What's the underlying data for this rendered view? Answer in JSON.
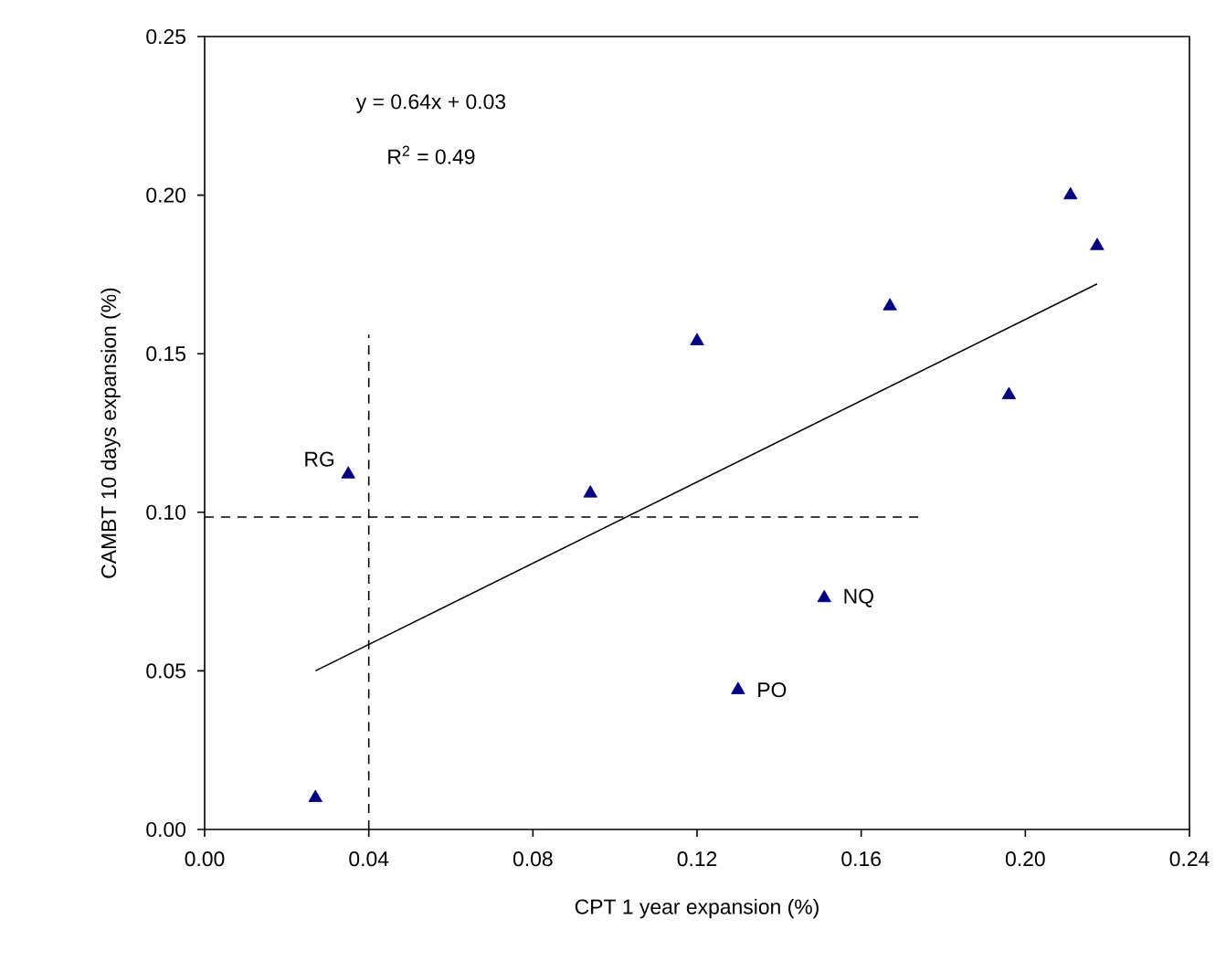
{
  "chart_data": {
    "type": "scatter",
    "xlabel": "CPT 1 year expansion (%)",
    "ylabel": "CAMBT 10 days expansion (%)",
    "xlim": [
      0,
      0.24
    ],
    "ylim": [
      0,
      0.25
    ],
    "xticks": [
      {
        "value": 0,
        "label": "0.00"
      },
      {
        "value": 0.04,
        "label": "0.04"
      },
      {
        "value": 0.08,
        "label": "0.08"
      },
      {
        "value": 0.12,
        "label": "0.12"
      },
      {
        "value": 0.16,
        "label": "0.16"
      },
      {
        "value": 0.2,
        "label": "0.20"
      },
      {
        "value": 0.24,
        "label": "0.24"
      }
    ],
    "yticks": [
      {
        "value": 0,
        "label": "0.00"
      },
      {
        "value": 0.05,
        "label": "0.05"
      },
      {
        "value": 0.1,
        "label": "0.10"
      },
      {
        "value": 0.15,
        "label": "0.15"
      },
      {
        "value": 0.2,
        "label": "0.20"
      },
      {
        "value": 0.25,
        "label": "0.25"
      }
    ],
    "grid": false,
    "series": [
      {
        "marker": "triangle",
        "color": "#000080",
        "x": [
          0.027,
          0.035,
          0.094,
          0.12,
          0.13,
          0.151,
          0.167,
          0.196,
          0.211,
          0.2175
        ],
        "values": [
          0.01,
          0.112,
          0.106,
          0.154,
          0.044,
          0.073,
          0.165,
          0.137,
          0.2,
          0.184
        ]
      },
      {
        "type": "line",
        "color": "#000000",
        "line_style": "solid",
        "x": [
          0.027,
          0.2175
        ],
        "values": [
          0.05,
          0.172
        ]
      },
      {
        "type": "line",
        "color": "#000000",
        "line_style": "dashed",
        "x": [
          0.04,
          0.04
        ],
        "values": [
          0,
          0.156
        ]
      },
      {
        "type": "line",
        "color": "#000000",
        "line_style": "dashed",
        "x": [
          0,
          0.174
        ],
        "values": [
          0.0985,
          0.0985
        ]
      }
    ],
    "annotations": [
      "y = 0.64x + 0.03",
      "R$^{2}$ = 0.49",
      {
        "text": "RG",
        "x": 0.035,
        "y": 0.112
      },
      {
        "text": "NQ",
        "x": 0.151,
        "y": 0.073
      },
      {
        "text": "PO",
        "x": 0.13,
        "y": 0.044
      }
    ]
  }
}
